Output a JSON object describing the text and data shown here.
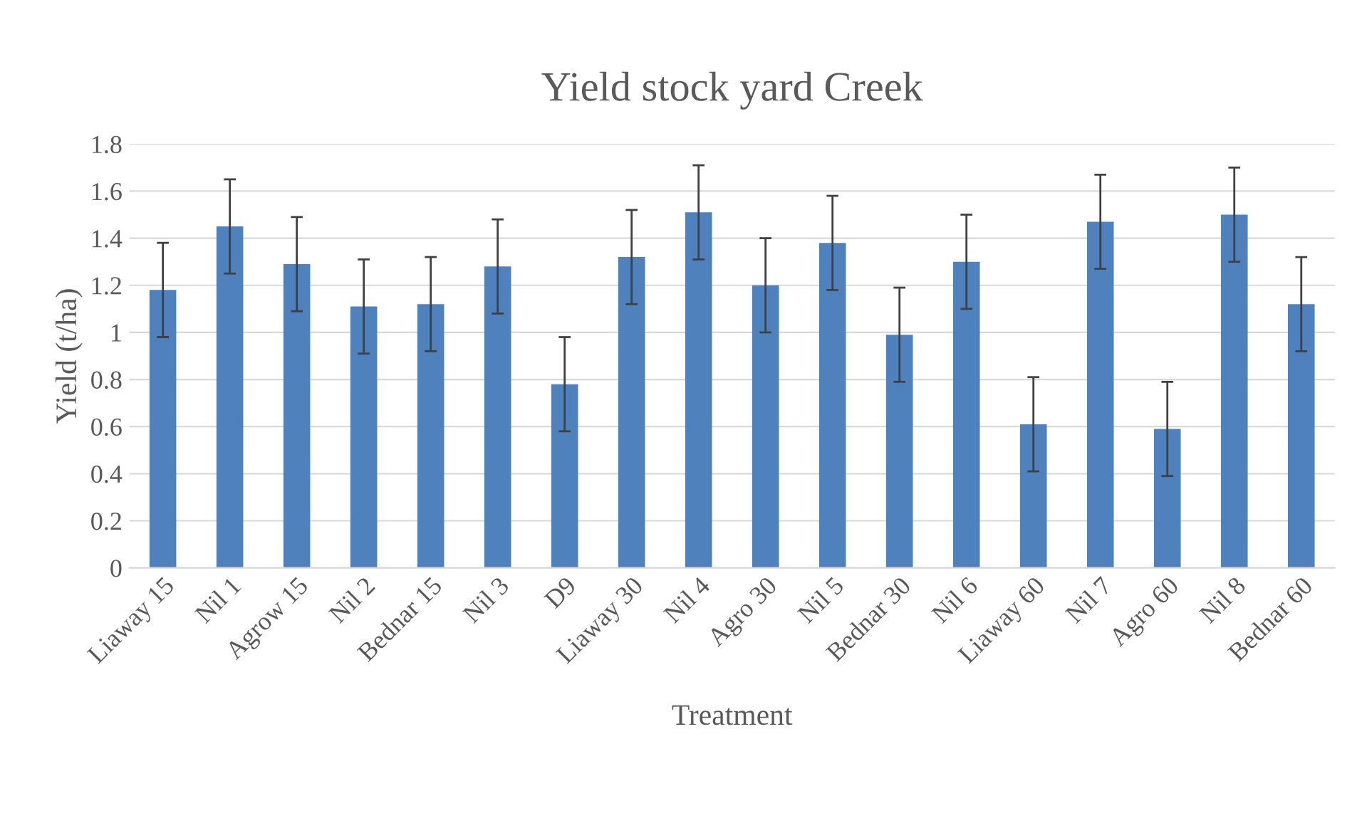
{
  "chart_data": {
    "type": "bar",
    "title": "Yield stock yard Creek",
    "xlabel": "Treatment",
    "ylabel": "Yield (t/ha)",
    "categories": [
      "Liaway 15",
      "Nil 1",
      "Agrow 15",
      "Nil 2",
      "Bednar 15",
      "Nil 3",
      "D9",
      "Liaway 30",
      "Nil 4",
      "Agro 30",
      "Nil 5",
      "Bednar 30",
      "Nil 6",
      "Liaway 60",
      "Nil 7",
      "Agro 60",
      "Nil 8",
      "Bednar 60"
    ],
    "values": [
      1.18,
      1.45,
      1.29,
      1.11,
      1.12,
      1.28,
      0.78,
      1.32,
      1.51,
      1.2,
      1.38,
      0.99,
      1.3,
      0.61,
      1.47,
      0.59,
      1.5,
      1.12
    ],
    "errors": [
      0.2,
      0.2,
      0.2,
      0.2,
      0.2,
      0.2,
      0.2,
      0.2,
      0.2,
      0.2,
      0.2,
      0.2,
      0.2,
      0.2,
      0.2,
      0.2,
      0.2,
      0.2
    ],
    "color": "#4f81bd",
    "ylim": [
      0,
      1.8
    ],
    "yticks": [
      0,
      0.2,
      0.4,
      0.6,
      0.8,
      1,
      1.2,
      1.4,
      1.6,
      1.8
    ],
    "grid": "y",
    "legend": false
  }
}
